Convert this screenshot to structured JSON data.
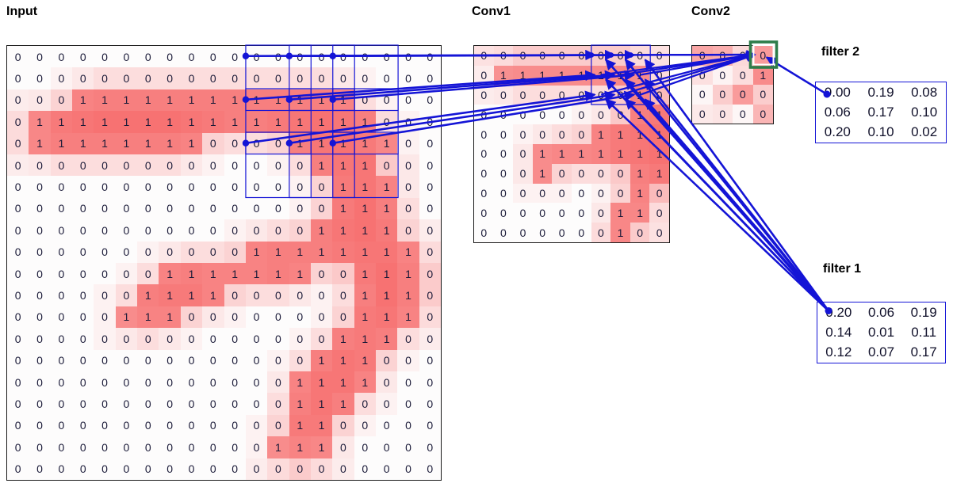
{
  "titles": {
    "input": "Input",
    "conv1": "Conv1",
    "conv2": "Conv2"
  },
  "filter1": {
    "label": "filter 1",
    "values": [
      [
        "0.20",
        "0.06",
        "0.19"
      ],
      [
        "0.14",
        "0.01",
        "0.11"
      ],
      [
        "0.12",
        "0.07",
        "0.17"
      ]
    ]
  },
  "filter2": {
    "label": "filter 2",
    "values": [
      [
        "0.00",
        "0.19",
        "0.08"
      ],
      [
        "0.06",
        "0.17",
        "0.10"
      ],
      [
        "0.20",
        "0.10",
        "0.02"
      ]
    ]
  },
  "input_grid": {
    "rows": 20,
    "cols": 20,
    "values": [
      [
        0,
        0,
        0,
        0,
        0,
        0,
        0,
        0,
        0,
        0,
        0,
        0,
        0,
        0,
        0,
        0,
        0,
        0,
        0,
        0
      ],
      [
        0,
        0,
        0,
        0,
        0,
        0,
        0,
        0,
        0,
        0,
        0,
        0,
        0,
        0,
        0,
        0,
        0,
        0,
        0,
        0
      ],
      [
        0,
        0,
        0,
        1,
        1,
        1,
        1,
        1,
        1,
        1,
        1,
        1,
        1,
        1,
        1,
        1,
        0,
        0,
        0,
        0
      ],
      [
        0,
        1,
        1,
        1,
        1,
        1,
        1,
        1,
        1,
        1,
        1,
        1,
        1,
        1,
        1,
        1,
        1,
        0,
        0,
        0
      ],
      [
        0,
        1,
        1,
        1,
        1,
        1,
        1,
        1,
        1,
        0,
        0,
        0,
        0,
        1,
        1,
        1,
        1,
        1,
        0,
        0
      ],
      [
        0,
        0,
        0,
        0,
        0,
        0,
        0,
        0,
        0,
        0,
        0,
        0,
        0,
        0,
        1,
        1,
        1,
        0,
        0,
        0
      ],
      [
        0,
        0,
        0,
        0,
        0,
        0,
        0,
        0,
        0,
        0,
        0,
        0,
        0,
        0,
        0,
        1,
        1,
        1,
        0,
        0
      ],
      [
        0,
        0,
        0,
        0,
        0,
        0,
        0,
        0,
        0,
        0,
        0,
        0,
        0,
        0,
        0,
        1,
        1,
        1,
        0,
        0
      ],
      [
        0,
        0,
        0,
        0,
        0,
        0,
        0,
        0,
        0,
        0,
        0,
        0,
        0,
        0,
        1,
        1,
        1,
        1,
        0,
        0
      ],
      [
        0,
        0,
        0,
        0,
        0,
        0,
        0,
        0,
        0,
        0,
        0,
        1,
        1,
        1,
        1,
        1,
        1,
        1,
        1,
        0
      ],
      [
        0,
        0,
        0,
        0,
        0,
        0,
        0,
        1,
        1,
        1,
        1,
        1,
        1,
        1,
        0,
        0,
        1,
        1,
        1,
        0
      ],
      [
        0,
        0,
        0,
        0,
        0,
        0,
        1,
        1,
        1,
        1,
        0,
        0,
        0,
        0,
        0,
        0,
        1,
        1,
        1,
        0
      ],
      [
        0,
        0,
        0,
        0,
        0,
        1,
        1,
        1,
        0,
        0,
        0,
        0,
        0,
        0,
        0,
        0,
        1,
        1,
        1,
        0
      ],
      [
        0,
        0,
        0,
        0,
        0,
        0,
        0,
        0,
        0,
        0,
        0,
        0,
        0,
        0,
        0,
        1,
        1,
        1,
        0,
        0
      ],
      [
        0,
        0,
        0,
        0,
        0,
        0,
        0,
        0,
        0,
        0,
        0,
        0,
        0,
        0,
        1,
        1,
        1,
        0,
        0,
        0
      ],
      [
        0,
        0,
        0,
        0,
        0,
        0,
        0,
        0,
        0,
        0,
        0,
        0,
        0,
        1,
        1,
        1,
        1,
        0,
        0,
        0
      ],
      [
        0,
        0,
        0,
        0,
        0,
        0,
        0,
        0,
        0,
        0,
        0,
        0,
        0,
        1,
        1,
        1,
        0,
        0,
        0,
        0
      ],
      [
        0,
        0,
        0,
        0,
        0,
        0,
        0,
        0,
        0,
        0,
        0,
        0,
        0,
        1,
        1,
        0,
        0,
        0,
        0,
        0
      ],
      [
        0,
        0,
        0,
        0,
        0,
        0,
        0,
        0,
        0,
        0,
        0,
        0,
        1,
        1,
        1,
        0,
        0,
        0,
        0,
        0
      ],
      [
        0,
        0,
        0,
        0,
        0,
        0,
        0,
        0,
        0,
        0,
        0,
        0,
        0,
        0,
        0,
        0,
        0,
        0,
        0,
        0
      ]
    ]
  },
  "conv1_grid": {
    "rows": 10,
    "cols": 10,
    "values": [
      [
        0,
        0,
        0,
        0,
        0,
        0,
        0,
        0,
        0,
        0
      ],
      [
        0,
        1,
        1,
        1,
        1,
        1,
        1,
        1,
        1,
        0
      ],
      [
        0,
        0,
        0,
        0,
        0,
        0,
        0,
        0,
        1,
        0
      ],
      [
        0,
        0,
        0,
        0,
        0,
        0,
        0,
        0,
        1,
        1
      ],
      [
        0,
        0,
        0,
        0,
        0,
        0,
        1,
        1,
        1,
        1
      ],
      [
        0,
        0,
        0,
        1,
        1,
        1,
        1,
        1,
        1,
        1
      ],
      [
        0,
        0,
        0,
        1,
        0,
        0,
        0,
        0,
        1,
        1
      ],
      [
        0,
        0,
        0,
        0,
        0,
        0,
        0,
        0,
        1,
        0
      ],
      [
        0,
        0,
        0,
        0,
        0,
        0,
        0,
        1,
        1,
        0
      ],
      [
        0,
        0,
        0,
        0,
        0,
        0,
        0,
        1,
        0,
        0
      ]
    ]
  },
  "conv2_grid": {
    "rows": 4,
    "cols": 4,
    "values": [
      [
        0,
        0,
        0,
        0
      ],
      [
        0,
        0,
        0,
        1
      ],
      [
        0,
        0,
        0,
        0
      ],
      [
        0,
        0,
        0,
        0
      ]
    ],
    "shades": [
      [
        0.55,
        0.5,
        0.22,
        0.62
      ],
      [
        0.18,
        0.06,
        0.2,
        0.72
      ],
      [
        0.04,
        0.3,
        0.62,
        0.3
      ],
      [
        0.12,
        0.15,
        0.04,
        0.45
      ]
    ]
  },
  "overlay": {
    "input_windows": {
      "row_starts": [
        1,
        3,
        5
      ],
      "col_starts": [
        12,
        14,
        16
      ],
      "size": 3
    },
    "conv1_window": {
      "row_start": 1,
      "col_start": 7,
      "size": 3
    },
    "conv2_target_cell": {
      "row": 1,
      "col": 4
    }
  },
  "colors": {
    "overlay_blue": "#1414d6",
    "highlight_green": "#2e7d4a",
    "cell_red_max": "#f65f5f",
    "cell_base": "#fdfcfc",
    "digit": "#1a1a38"
  }
}
